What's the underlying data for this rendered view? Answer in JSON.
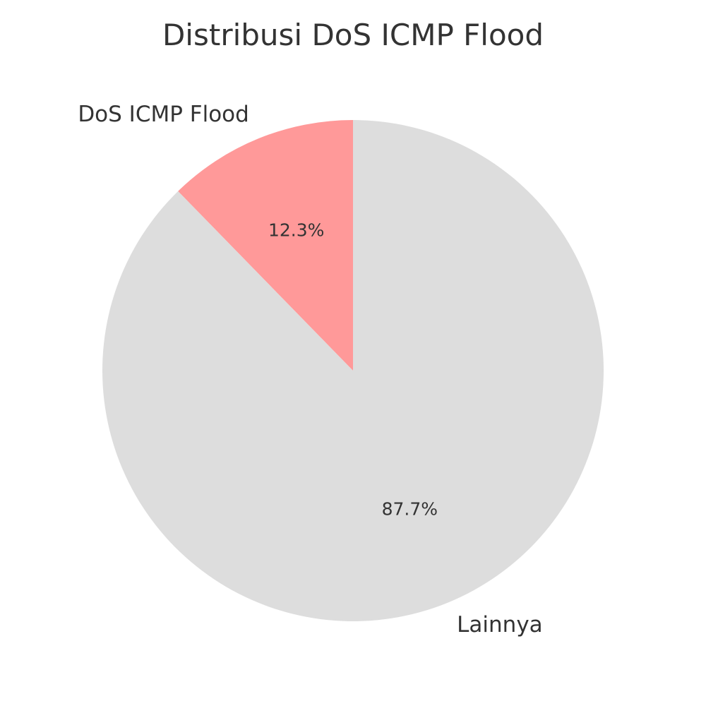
{
  "chart_data": {
    "type": "pie",
    "title": "Distribusi DoS ICMP Flood",
    "slices": [
      {
        "label": "DoS ICMP Flood",
        "value": 12.3,
        "pct_label": "12.3%",
        "color": "#ff9999"
      },
      {
        "label": "Lainnya",
        "value": 87.7,
        "pct_label": "87.7%",
        "color": "#dddddd"
      }
    ],
    "start_angle_deg": 90,
    "direction": "counterclockwise",
    "legend": "none"
  }
}
